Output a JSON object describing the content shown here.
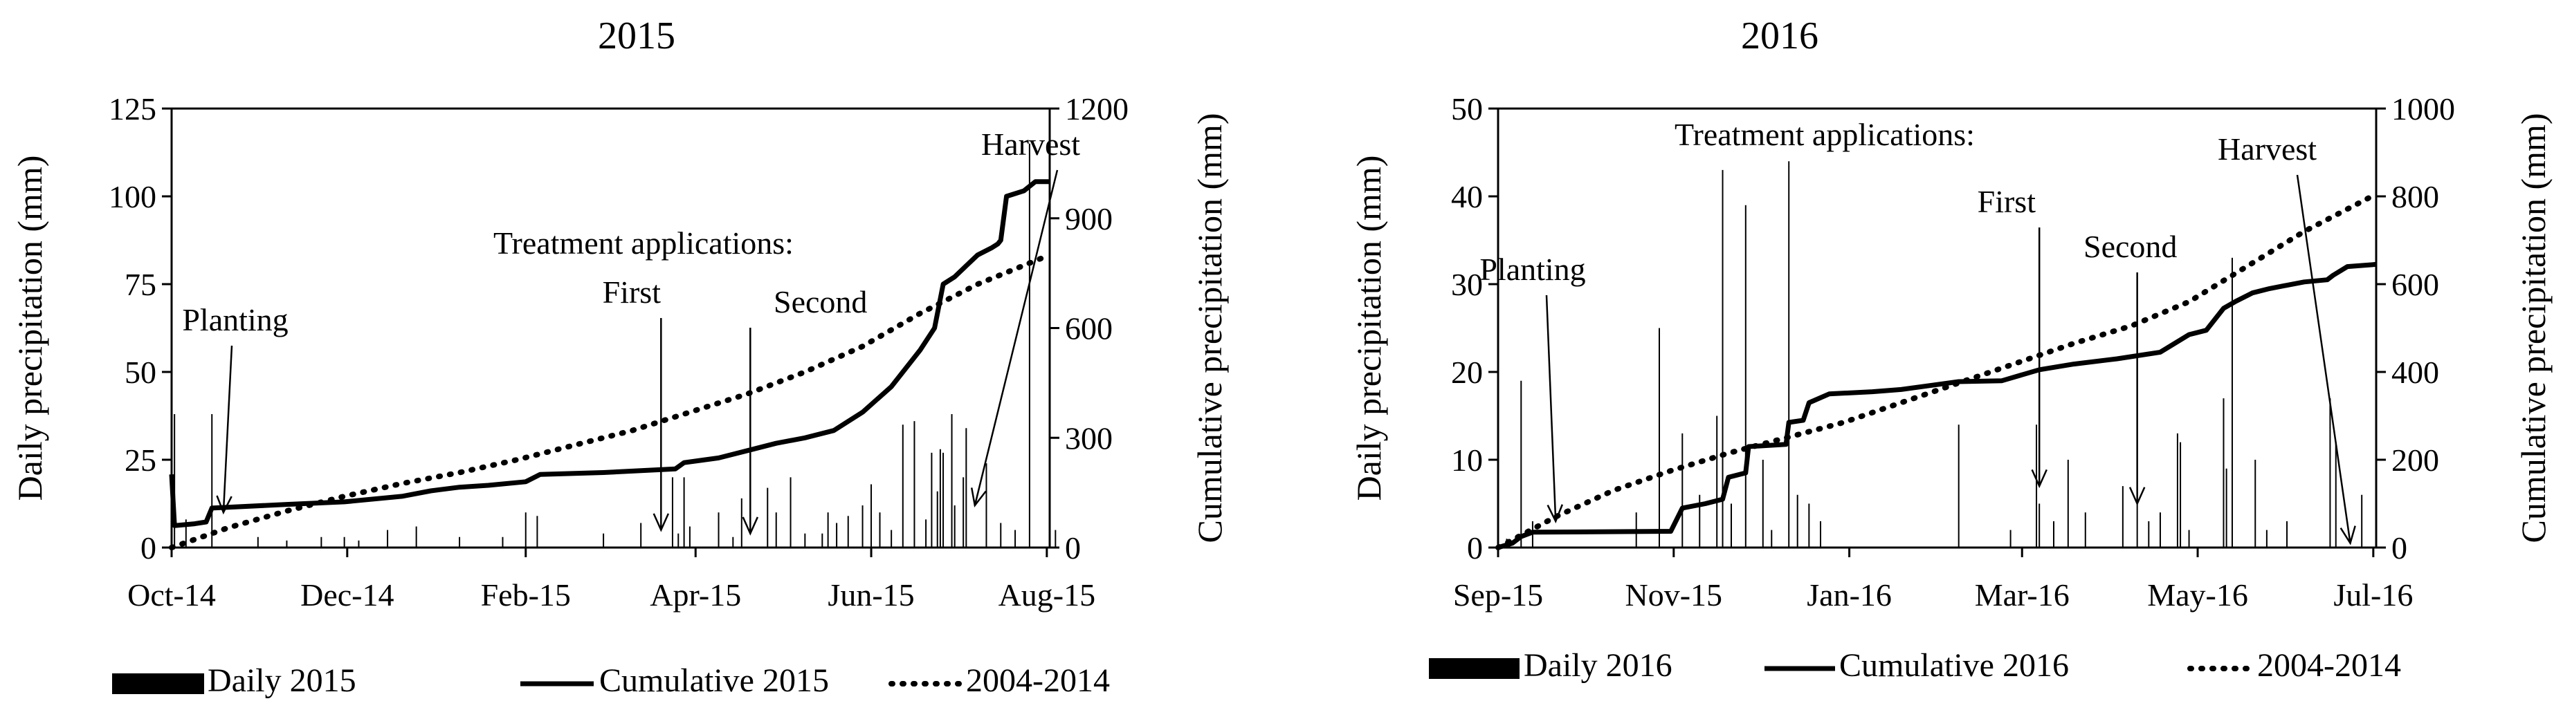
{
  "chart_data": [
    {
      "type": "bar+line",
      "title": "2015",
      "xlabel": "",
      "ylabel": "Daily precipitation (mm)",
      "y2label": "Cumulative precipitation (mm)",
      "ylim": [
        0,
        125
      ],
      "y2lim": [
        0,
        1200
      ],
      "yticks": [
        0,
        25,
        50,
        75,
        100,
        125
      ],
      "y2ticks": [
        0,
        300,
        600,
        900,
        1200
      ],
      "xlim": [
        0,
        305
      ],
      "xtick_labels": [
        "Oct-14",
        "Dec-14",
        "Feb-15",
        "Apr-15",
        "Jun-15",
        "Aug-15"
      ],
      "xtick_days": [
        0,
        61,
        123,
        182,
        243,
        304
      ],
      "daily": [
        [
          1,
          38
        ],
        [
          5,
          8
        ],
        [
          14,
          38
        ],
        [
          30,
          3
        ],
        [
          40,
          2
        ],
        [
          52,
          3
        ],
        [
          60,
          3
        ],
        [
          65,
          2
        ],
        [
          75,
          5
        ],
        [
          85,
          6
        ],
        [
          100,
          3
        ],
        [
          115,
          3
        ],
        [
          123,
          10
        ],
        [
          127,
          9
        ],
        [
          150,
          4
        ],
        [
          163,
          7
        ],
        [
          174,
          20
        ],
        [
          176,
          4
        ],
        [
          178,
          20
        ],
        [
          180,
          6
        ],
        [
          190,
          10
        ],
        [
          195,
          3
        ],
        [
          198,
          14
        ],
        [
          207,
          17
        ],
        [
          210,
          10
        ],
        [
          215,
          20
        ],
        [
          220,
          4
        ],
        [
          226,
          4
        ],
        [
          228,
          10
        ],
        [
          231,
          7
        ],
        [
          235,
          9
        ],
        [
          240,
          12
        ],
        [
          243,
          18
        ],
        [
          246,
          10
        ],
        [
          250,
          5
        ],
        [
          254,
          35
        ],
        [
          258,
          36
        ],
        [
          262,
          8
        ],
        [
          264,
          27
        ],
        [
          266,
          16
        ],
        [
          267,
          28
        ],
        [
          268,
          27
        ],
        [
          271,
          38
        ],
        [
          272,
          12
        ],
        [
          275,
          20
        ],
        [
          276,
          34
        ],
        [
          283,
          24
        ],
        [
          288,
          7
        ],
        [
          293,
          5
        ],
        [
          298,
          115
        ],
        [
          305,
          28
        ],
        [
          307,
          5
        ]
      ],
      "series": [
        {
          "name": "Cumulative 2015",
          "style": "solid",
          "points": [
            [
              0,
              200
            ],
            [
              1,
              60
            ],
            [
              8,
              65
            ],
            [
              12,
              70
            ],
            [
              14,
              108
            ],
            [
              40,
              118
            ],
            [
              60,
              125
            ],
            [
              80,
              140
            ],
            [
              90,
              155
            ],
            [
              100,
              165
            ],
            [
              110,
              170
            ],
            [
              123,
              180
            ],
            [
              128,
              200
            ],
            [
              150,
              205
            ],
            [
              175,
              215
            ],
            [
              178,
              232
            ],
            [
              190,
              245
            ],
            [
              200,
              265
            ],
            [
              210,
              285
            ],
            [
              220,
              300
            ],
            [
              230,
              320
            ],
            [
              240,
              370
            ],
            [
              250,
              440
            ],
            [
              260,
              540
            ],
            [
              265,
              600
            ],
            [
              268,
              720
            ],
            [
              272,
              740
            ],
            [
              276,
              770
            ],
            [
              280,
              800
            ],
            [
              285,
              820
            ],
            [
              287,
              830
            ],
            [
              288,
              840
            ],
            [
              290,
              960
            ],
            [
              296,
              975
            ],
            [
              300,
              1000
            ],
            [
              305,
              1000
            ]
          ]
        },
        {
          "name": "2004-2014",
          "style": "dotted",
          "points": [
            [
              0,
              0
            ],
            [
              20,
              55
            ],
            [
              40,
              100
            ],
            [
              60,
              140
            ],
            [
              80,
              175
            ],
            [
              100,
              205
            ],
            [
              120,
              240
            ],
            [
              140,
              280
            ],
            [
              160,
              320
            ],
            [
              180,
              370
            ],
            [
              200,
              420
            ],
            [
              220,
              480
            ],
            [
              240,
              550
            ],
            [
              260,
              640
            ],
            [
              280,
              720
            ],
            [
              305,
              800
            ]
          ]
        }
      ],
      "annotations": [
        {
          "text": "Planting",
          "day": 18,
          "value": 10
        },
        {
          "text": "Treatment applications:",
          "day": 0,
          "value": 0
        },
        {
          "text": "First",
          "day": 170,
          "value": 5
        },
        {
          "text": "Second",
          "day": 201,
          "value": 4
        },
        {
          "text": "Harvest",
          "day": 279,
          "value": 12
        }
      ],
      "legend": [
        "Daily 2015",
        "Cumulative 2015",
        "2004-2014"
      ]
    },
    {
      "type": "bar+line",
      "title": "2016",
      "xlabel": "",
      "ylabel": "Daily precipitation (mm)",
      "y2label": "Cumulative precipitation (mm)",
      "ylim": [
        0,
        50
      ],
      "y2lim": [
        0,
        1000
      ],
      "yticks": [
        0,
        10,
        20,
        30,
        40,
        50
      ],
      "y2ticks": [
        0,
        200,
        400,
        600,
        800,
        1000
      ],
      "xlim": [
        0,
        305
      ],
      "xtick_labels": [
        "Sep-15",
        "Nov-15",
        "Jan-16",
        "Mar-16",
        "May-16",
        "Jul-16"
      ],
      "xtick_days": [
        0,
        61,
        122,
        182,
        243,
        304
      ],
      "daily": [
        [
          3,
          1
        ],
        [
          8,
          19
        ],
        [
          12,
          3
        ],
        [
          48,
          4
        ],
        [
          56,
          25
        ],
        [
          64,
          13
        ],
        [
          70,
          6
        ],
        [
          76,
          15
        ],
        [
          78,
          43
        ],
        [
          81,
          5
        ],
        [
          86,
          39
        ],
        [
          92,
          10
        ],
        [
          95,
          2
        ],
        [
          101,
          44
        ],
        [
          104,
          6
        ],
        [
          108,
          5
        ],
        [
          112,
          3
        ],
        [
          160,
          14
        ],
        [
          178,
          2
        ],
        [
          187,
          14
        ],
        [
          188,
          5
        ],
        [
          193,
          3
        ],
        [
          198,
          10
        ],
        [
          204,
          4
        ],
        [
          217,
          7
        ],
        [
          222,
          5
        ],
        [
          226,
          3
        ],
        [
          230,
          4
        ],
        [
          236,
          13
        ],
        [
          237,
          12
        ],
        [
          240,
          2
        ],
        [
          252,
          17
        ],
        [
          253,
          9
        ],
        [
          255,
          33
        ],
        [
          263,
          10
        ],
        [
          267,
          2
        ],
        [
          274,
          3
        ],
        [
          289,
          17
        ],
        [
          291,
          12
        ],
        [
          300,
          6
        ]
      ],
      "series": [
        {
          "name": "Cumulative 2016",
          "style": "solid",
          "points": [
            [
              0,
              0
            ],
            [
              5,
              10
            ],
            [
              8,
              25
            ],
            [
              12,
              35
            ],
            [
              60,
              37
            ],
            [
              64,
              90
            ],
            [
              72,
              100
            ],
            [
              78,
              110
            ],
            [
              80,
              160
            ],
            [
              86,
              170
            ],
            [
              87,
              230
            ],
            [
              100,
              235
            ],
            [
              101,
              285
            ],
            [
              106,
              290
            ],
            [
              108,
              330
            ],
            [
              115,
              350
            ],
            [
              130,
              355
            ],
            [
              140,
              360
            ],
            [
              160,
              378
            ],
            [
              175,
              380
            ],
            [
              188,
              405
            ],
            [
              200,
              418
            ],
            [
              215,
              430
            ],
            [
              230,
              445
            ],
            [
              240,
              485
            ],
            [
              246,
              495
            ],
            [
              252,
              545
            ],
            [
              256,
              560
            ],
            [
              262,
              580
            ],
            [
              268,
              590
            ],
            [
              280,
              605
            ],
            [
              288,
              610
            ],
            [
              290,
              620
            ],
            [
              295,
              640
            ],
            [
              305,
              645
            ]
          ]
        },
        {
          "name": "2004-2014",
          "style": "dotted",
          "points": [
            [
              0,
              0
            ],
            [
              20,
              70
            ],
            [
              40,
              130
            ],
            [
              60,
              175
            ],
            [
              80,
              215
            ],
            [
              100,
              250
            ],
            [
              120,
              285
            ],
            [
              140,
              330
            ],
            [
              160,
              375
            ],
            [
              180,
              420
            ],
            [
              200,
              465
            ],
            [
              220,
              505
            ],
            [
              240,
              560
            ],
            [
              260,
              640
            ],
            [
              280,
              720
            ],
            [
              305,
              805
            ]
          ]
        }
      ],
      "annotations": [
        {
          "text": "Planting",
          "day": 20,
          "value": 3
        },
        {
          "text": "Treatment applications:",
          "day": 0,
          "value": 0
        },
        {
          "text": "First",
          "day": 188,
          "value": 7
        },
        {
          "text": "Second",
          "day": 222,
          "value": 5
        },
        {
          "text": "Harvest",
          "day": 296,
          "value": 0.5
        }
      ],
      "legend": [
        "Daily 2016",
        "Cumulative 2016",
        "2004-2014"
      ]
    }
  ]
}
